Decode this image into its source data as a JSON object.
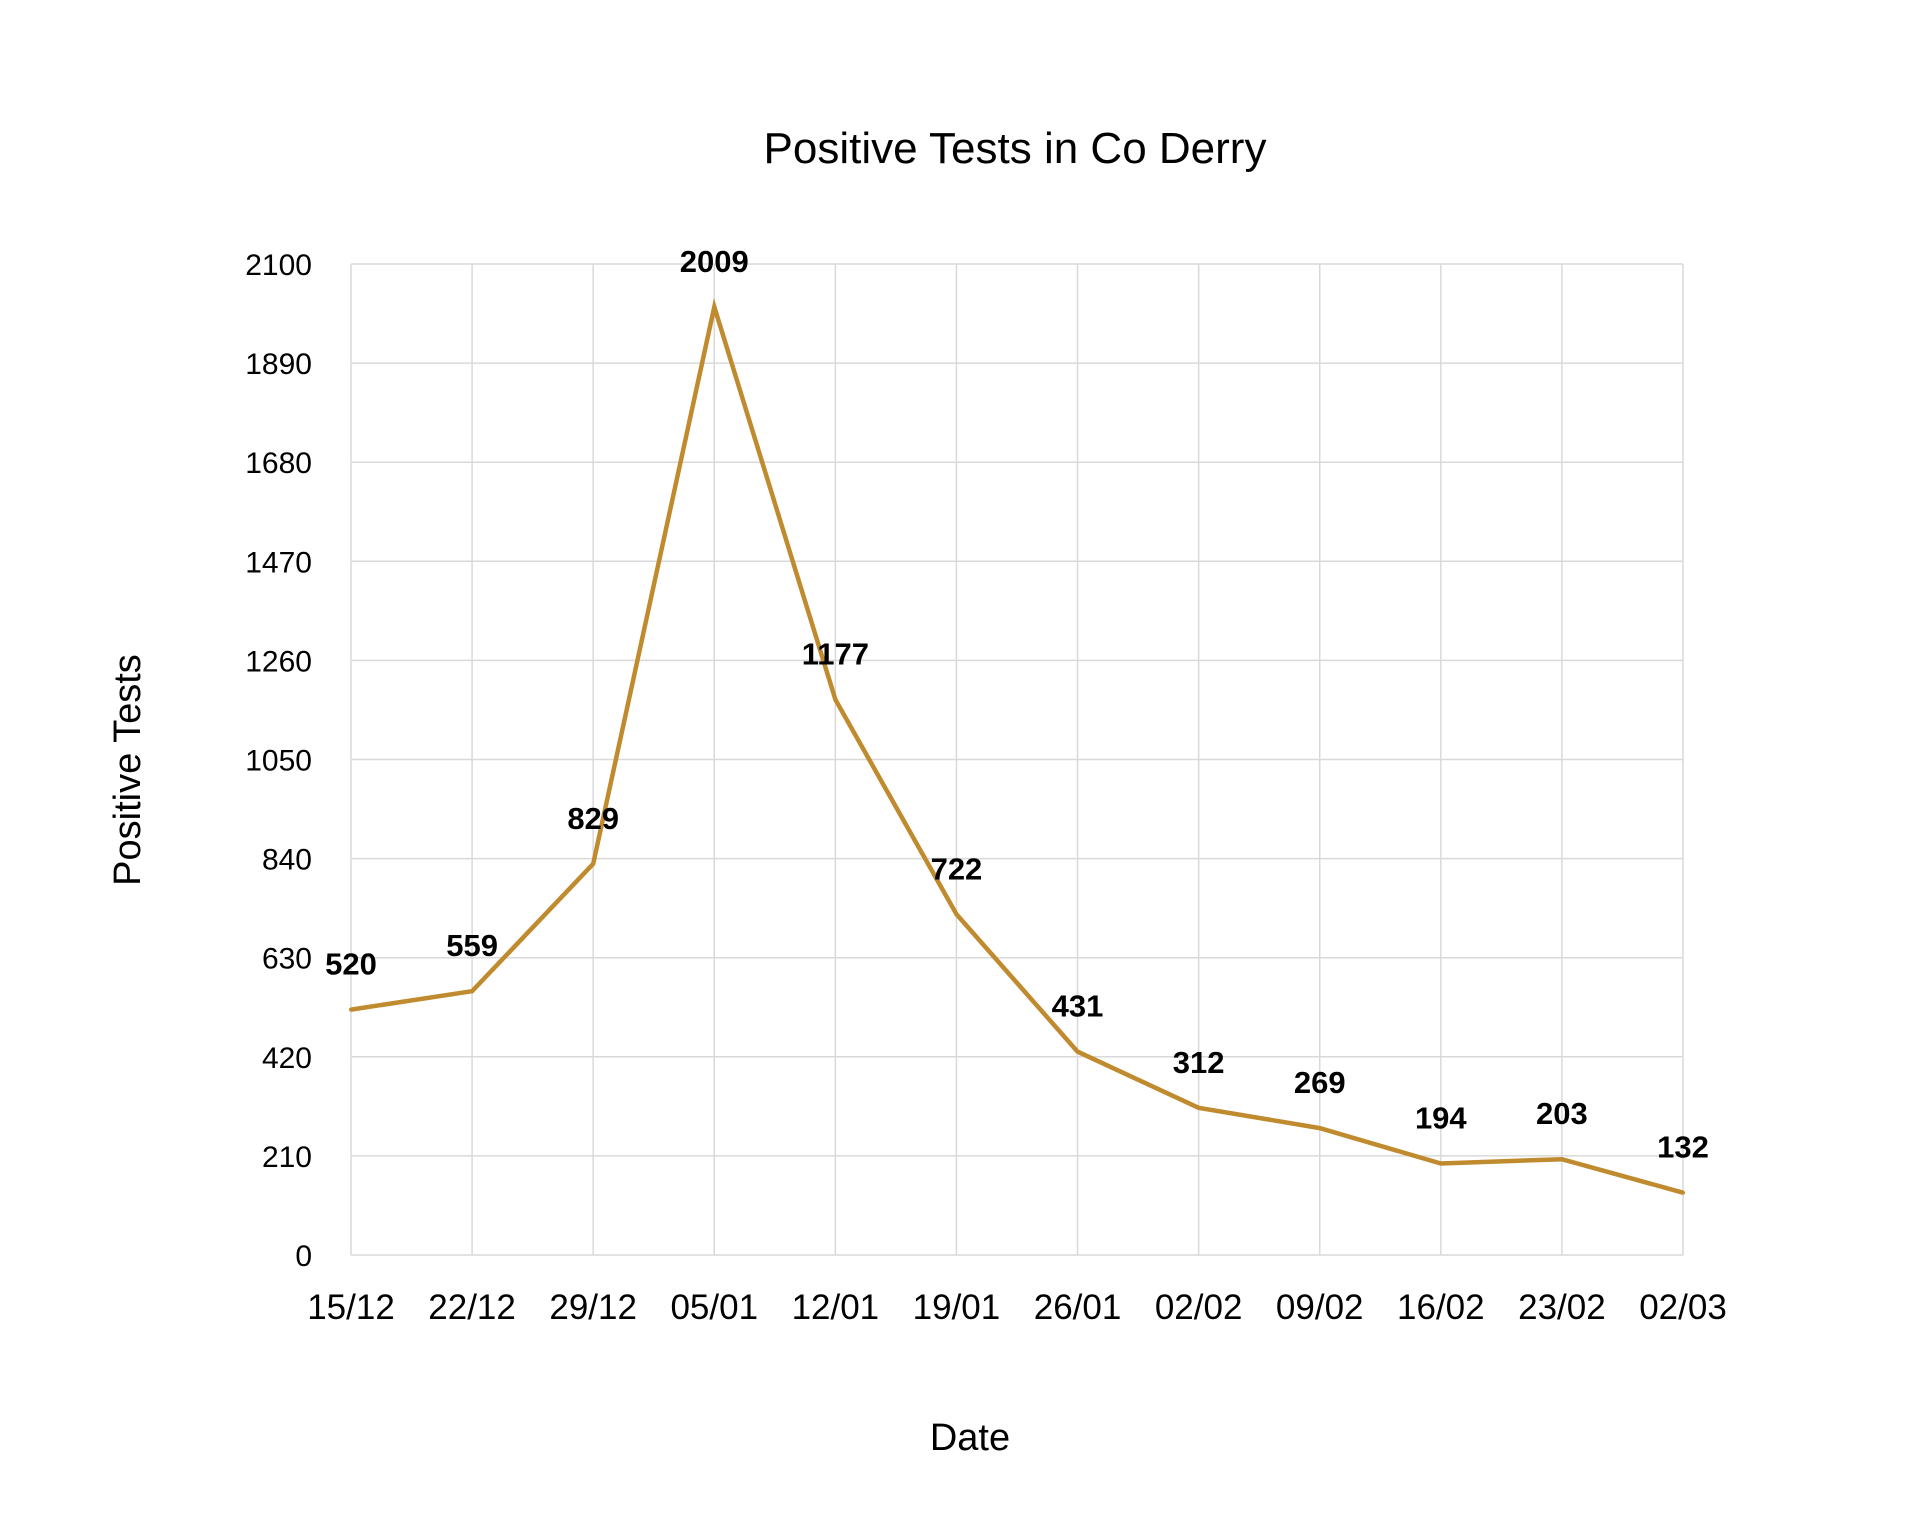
{
  "chart_data": {
    "type": "line",
    "title": "Positive Tests in Co Derry",
    "xlabel": "Date",
    "ylabel": "Positive Tests",
    "categories": [
      "15/12",
      "22/12",
      "29/12",
      "05/01",
      "12/01",
      "19/01",
      "26/01",
      "02/02",
      "09/02",
      "16/02",
      "23/02",
      "02/03"
    ],
    "series": [
      {
        "values": [
          520,
          559,
          829,
          2009,
          1177,
          722,
          431,
          312,
          269,
          194,
          203,
          132
        ]
      }
    ],
    "yticks": [
      "0",
      "210",
      "420",
      "630",
      "840",
      "1050",
      "1260",
      "1470",
      "1680",
      "1890",
      "2100"
    ],
    "ylim": [
      0,
      2100
    ],
    "grid": true,
    "line_color": "#c08a2e",
    "data_labels": true
  }
}
